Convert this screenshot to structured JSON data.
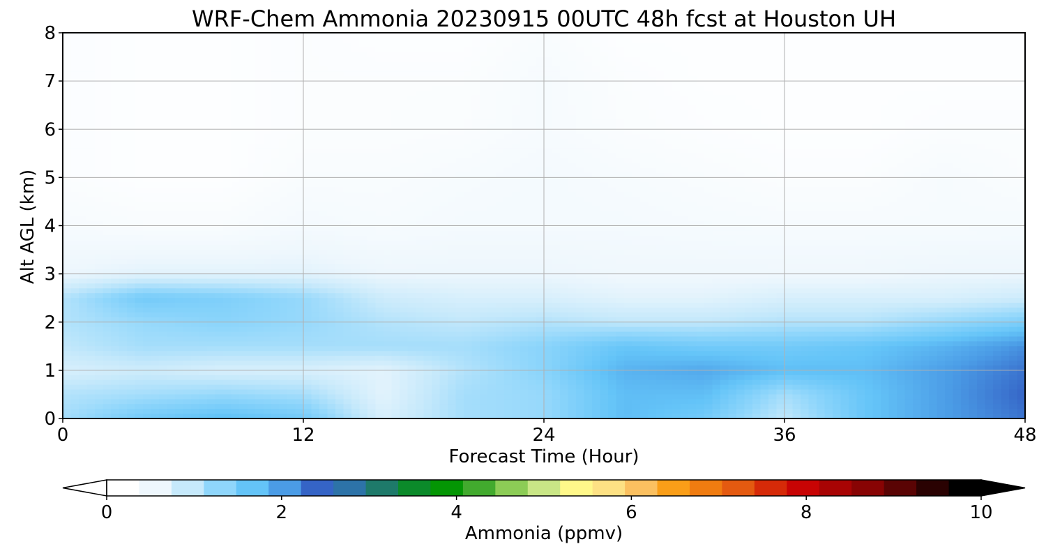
{
  "chart_data": {
    "type": "heatmap",
    "title": "WRF-Chem Ammonia  20230915 00UTC 48h fcst at Houston UH",
    "xlabel": "Forecast Time (Hour)",
    "ylabel": "Alt AGL (km)",
    "xlim": [
      0,
      48
    ],
    "ylim": [
      0,
      8
    ],
    "xticks": [
      "0",
      "12",
      "24",
      "36",
      "48"
    ],
    "yticks": [
      "0",
      "1",
      "2",
      "3",
      "4",
      "5",
      "6",
      "7",
      "8"
    ],
    "grid": true,
    "x": [
      0,
      4,
      8,
      12,
      16,
      20,
      24,
      28,
      32,
      36,
      40,
      44,
      48
    ],
    "y": [
      0,
      0.5,
      1,
      1.5,
      2,
      2.5,
      3,
      4,
      5,
      6,
      7,
      8
    ],
    "values": [
      [
        1.0,
        1.4,
        1.6,
        1.4,
        0.6,
        1.0,
        1.1,
        1.6,
        1.4,
        0.8,
        1.5,
        1.9,
        2.2
      ],
      [
        0.9,
        1.0,
        1.1,
        1.0,
        0.5,
        1.0,
        1.1,
        1.6,
        1.6,
        1.0,
        1.5,
        1.9,
        2.3
      ],
      [
        0.6,
        0.7,
        0.6,
        0.6,
        0.5,
        0.9,
        1.2,
        1.7,
        1.8,
        1.6,
        1.6,
        1.9,
        2.2
      ],
      [
        0.8,
        1.0,
        1.0,
        1.0,
        1.0,
        1.0,
        1.2,
        1.5,
        1.4,
        1.4,
        1.5,
        1.7,
        2.0
      ],
      [
        0.9,
        1.1,
        1.2,
        1.1,
        0.9,
        0.8,
        0.9,
        0.8,
        0.8,
        0.9,
        0.9,
        1.1,
        1.3
      ],
      [
        0.9,
        1.4,
        1.3,
        1.1,
        0.7,
        0.6,
        0.6,
        0.5,
        0.5,
        0.6,
        0.6,
        0.6,
        0.7
      ],
      [
        0.4,
        0.5,
        0.5,
        0.5,
        0.4,
        0.4,
        0.4,
        0.35,
        0.35,
        0.35,
        0.35,
        0.4,
        0.4
      ],
      [
        0.2,
        0.15,
        0.15,
        0.25,
        0.2,
        0.25,
        0.25,
        0.25,
        0.22,
        0.2,
        0.2,
        0.2,
        0.22
      ],
      [
        0.1,
        0.05,
        0.05,
        0.15,
        0.15,
        0.2,
        0.25,
        0.2,
        0.15,
        0.1,
        0.1,
        0.2,
        0.12
      ],
      [
        0.1,
        0.05,
        0.05,
        0.1,
        0.1,
        0.12,
        0.2,
        0.12,
        0.08,
        0.05,
        0.05,
        0.1,
        0.1
      ],
      [
        0.1,
        0.05,
        0.05,
        0.1,
        0.1,
        0.1,
        0.2,
        0.1,
        0.05,
        0.05,
        0.05,
        0.05,
        0.05
      ],
      [
        0.1,
        0.05,
        0.05,
        0.1,
        0.05,
        0.05,
        0.15,
        0.05,
        0.05,
        0.05,
        0.05,
        0.05,
        0.05
      ]
    ],
    "colorbar": {
      "label": "Ammonia  (ppmv)",
      "min": 0,
      "max": 10,
      "extend": "both",
      "ticks": [
        "0",
        "2",
        "4",
        "6",
        "8",
        "10"
      ],
      "colors": [
        "#ffffff",
        "#eef7fd",
        "#c6e9fb",
        "#8fd6fb",
        "#64c4f8",
        "#4b9ce6",
        "#3564c6",
        "#2d73a8",
        "#1e7a6a",
        "#0b8a2a",
        "#049604",
        "#42aa2e",
        "#8ccc56",
        "#c9e686",
        "#fff88a",
        "#fde184",
        "#fbc060",
        "#fa9e18",
        "#f07c10",
        "#e45a10",
        "#d62a08",
        "#c80404",
        "#a80404",
        "#880404",
        "#5a0404",
        "#2a0202",
        "#000000"
      ]
    }
  }
}
